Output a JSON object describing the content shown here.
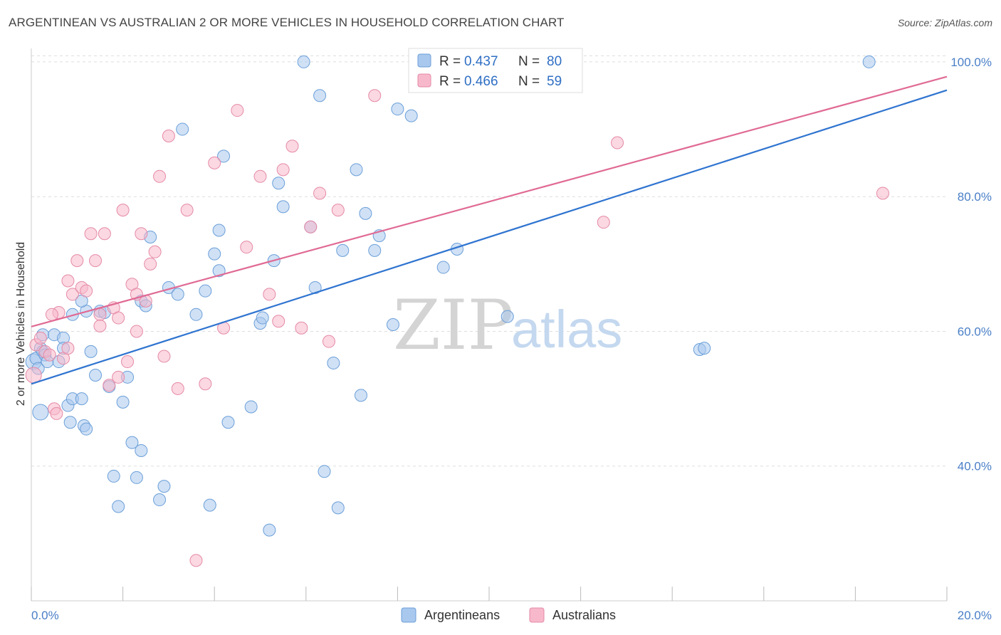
{
  "header": {
    "title": "ARGENTINEAN VS AUSTRALIAN 2 OR MORE VEHICLES IN HOUSEHOLD CORRELATION CHART",
    "source": "Source: ZipAtlas.com"
  },
  "watermark": {
    "part1": "ZIP",
    "part2": "atlas"
  },
  "stats": {
    "rows": [
      {
        "r_label": "R =",
        "r_value": "0.437",
        "n_label": "N =",
        "n_value": "80",
        "color": "#a9c8ee"
      },
      {
        "r_label": "R =",
        "r_value": "0.466",
        "n_label": "N =",
        "n_value": "59",
        "color": "#f7b8cb"
      }
    ]
  },
  "legend": {
    "items": [
      "Argentineans",
      "Australians"
    ]
  },
  "chart_data": {
    "type": "scatter",
    "title": "ARGENTINEAN VS AUSTRALIAN 2 OR MORE VEHICLES IN HOUSEHOLD CORRELATION CHART",
    "xlabel": "",
    "ylabel": "2 or more Vehicles in Household",
    "xlim": [
      0,
      20
    ],
    "ylim": [
      20,
      102
    ],
    "x_ticks": [
      0,
      20
    ],
    "x_tick_labels": [
      "0.0%",
      "20.0%"
    ],
    "y_ticks": [
      40,
      60,
      80,
      100
    ],
    "y_tick_labels": [
      "40.0%",
      "60.0%",
      "80.0%",
      "100.0%"
    ],
    "grid": true,
    "legend_position": "bottom-center",
    "series": [
      {
        "name": "Argentineans",
        "color": "#a9c8ee",
        "stroke": "#6b9fd8",
        "trend": {
          "x": [
            0,
            20
          ],
          "y": [
            52.2,
            95.8
          ],
          "color": "#2f74d0"
        },
        "points": [
          [
            0.05,
            55.5
          ],
          [
            0.1,
            56.0
          ],
          [
            0.15,
            54.5
          ],
          [
            0.2,
            57.5
          ],
          [
            0.25,
            57.0
          ],
          [
            0.3,
            56.5
          ],
          [
            0.35,
            55.5
          ],
          [
            0.25,
            59.5
          ],
          [
            0.2,
            48.0
          ],
          [
            0.5,
            59.5
          ],
          [
            0.6,
            55.5
          ],
          [
            0.7,
            59.0
          ],
          [
            0.8,
            49.0
          ],
          [
            0.85,
            46.5
          ],
          [
            0.9,
            50.0
          ],
          [
            1.1,
            50.0
          ],
          [
            1.15,
            46.0
          ],
          [
            1.3,
            57.0
          ],
          [
            1.2,
            63.0
          ],
          [
            1.4,
            53.5
          ],
          [
            1.5,
            63.0
          ],
          [
            1.7,
            51.8
          ],
          [
            1.8,
            38.5
          ],
          [
            1.9,
            34.0
          ],
          [
            2.0,
            49.5
          ],
          [
            2.1,
            53.2
          ],
          [
            2.2,
            43.5
          ],
          [
            2.3,
            38.3
          ],
          [
            2.4,
            42.3
          ],
          [
            1.1,
            64.5
          ],
          [
            0.9,
            62.5
          ],
          [
            2.4,
            64.5
          ],
          [
            2.5,
            63.8
          ],
          [
            2.6,
            74.0
          ],
          [
            2.8,
            35.0
          ],
          [
            2.9,
            37.0
          ],
          [
            3.0,
            66.5
          ],
          [
            3.2,
            65.5
          ],
          [
            3.3,
            90.0
          ],
          [
            3.6,
            62.5
          ],
          [
            3.8,
            66.0
          ],
          [
            3.9,
            34.2
          ],
          [
            4.0,
            71.5
          ],
          [
            4.1,
            69.0
          ],
          [
            4.2,
            86.0
          ],
          [
            4.3,
            46.5
          ],
          [
            4.8,
            48.8
          ],
          [
            5.0,
            61.2
          ],
          [
            5.05,
            62.0
          ],
          [
            5.2,
            30.5
          ],
          [
            5.3,
            70.5
          ],
          [
            5.4,
            82.0
          ],
          [
            5.5,
            78.5
          ],
          [
            5.95,
            100.0
          ],
          [
            6.1,
            75.5
          ],
          [
            6.2,
            66.5
          ],
          [
            6.3,
            95.0
          ],
          [
            6.4,
            39.2
          ],
          [
            6.6,
            55.3
          ],
          [
            6.7,
            33.8
          ],
          [
            6.8,
            72.0
          ],
          [
            7.1,
            84.0
          ],
          [
            7.2,
            50.5
          ],
          [
            7.3,
            77.5
          ],
          [
            7.5,
            72.0
          ],
          [
            7.6,
            74.2
          ],
          [
            7.9,
            61.0
          ],
          [
            8.0,
            93.0
          ],
          [
            8.3,
            92.0
          ],
          [
            8.6,
            100.0
          ],
          [
            9.0,
            69.5
          ],
          [
            9.3,
            72.2
          ],
          [
            10.4,
            62.2
          ],
          [
            14.6,
            57.3
          ],
          [
            14.7,
            57.5
          ],
          [
            18.3,
            100.0
          ],
          [
            1.2,
            45.5
          ],
          [
            0.7,
            57.5
          ],
          [
            1.6,
            62.8
          ],
          [
            4.1,
            75.0
          ]
        ]
      },
      {
        "name": "Australians",
        "color": "#f7b8cb",
        "stroke": "#e58aa6",
        "trend": {
          "x": [
            0,
            20
          ],
          "y": [
            60.7,
            97.8
          ],
          "color": "#e06a94"
        },
        "points": [
          [
            0.05,
            53.5
          ],
          [
            0.1,
            58.0
          ],
          [
            0.2,
            59.0
          ],
          [
            0.3,
            57.0
          ],
          [
            0.4,
            56.5
          ],
          [
            0.5,
            48.5
          ],
          [
            0.55,
            47.8
          ],
          [
            0.6,
            62.8
          ],
          [
            0.7,
            56.0
          ],
          [
            0.8,
            67.5
          ],
          [
            0.9,
            65.5
          ],
          [
            1.0,
            70.5
          ],
          [
            1.1,
            66.5
          ],
          [
            1.2,
            66.0
          ],
          [
            1.3,
            74.5
          ],
          [
            1.4,
            70.5
          ],
          [
            1.5,
            62.5
          ],
          [
            1.6,
            74.5
          ],
          [
            1.7,
            52.0
          ],
          [
            1.8,
            63.5
          ],
          [
            1.9,
            62.0
          ],
          [
            2.0,
            78.0
          ],
          [
            2.1,
            55.5
          ],
          [
            2.2,
            67.0
          ],
          [
            2.3,
            65.5
          ],
          [
            2.4,
            74.5
          ],
          [
            2.5,
            64.5
          ],
          [
            2.6,
            70.0
          ],
          [
            2.7,
            71.8
          ],
          [
            2.8,
            83.0
          ],
          [
            2.9,
            56.3
          ],
          [
            3.0,
            89.0
          ],
          [
            3.2,
            51.5
          ],
          [
            3.4,
            78.0
          ],
          [
            3.6,
            26.0
          ],
          [
            3.8,
            52.2
          ],
          [
            4.0,
            85.0
          ],
          [
            4.2,
            60.5
          ],
          [
            4.5,
            92.8
          ],
          [
            4.7,
            72.5
          ],
          [
            5.0,
            83.0
          ],
          [
            5.2,
            65.5
          ],
          [
            5.4,
            61.5
          ],
          [
            5.5,
            84.0
          ],
          [
            5.7,
            87.5
          ],
          [
            5.9,
            60.5
          ],
          [
            6.1,
            75.5
          ],
          [
            6.3,
            80.5
          ],
          [
            6.5,
            58.5
          ],
          [
            6.7,
            78.0
          ],
          [
            7.5,
            95.0
          ],
          [
            12.5,
            76.2
          ],
          [
            12.8,
            88.0
          ],
          [
            18.6,
            80.5
          ],
          [
            1.9,
            53.2
          ],
          [
            0.8,
            57.5
          ],
          [
            1.5,
            60.8
          ],
          [
            2.3,
            60.0
          ],
          [
            0.45,
            62.5
          ]
        ]
      }
    ]
  }
}
